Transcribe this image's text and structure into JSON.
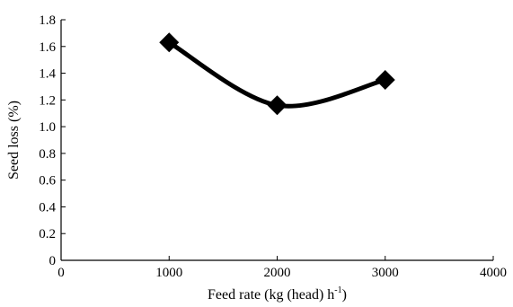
{
  "chart_data": {
    "type": "line",
    "title": "",
    "xlabel": "Feed rate (kg (head) h",
    "xlabel_sup": "-1",
    "xlabel_close": ")",
    "ylabel": "Seed loss (%)",
    "xlim": [
      0,
      4000
    ],
    "ylim": [
      0,
      1.8
    ],
    "x_ticks": [
      0,
      1000,
      2000,
      3000,
      4000
    ],
    "y_ticks": [
      0,
      0.2,
      0.4,
      0.6,
      0.8,
      1.0,
      1.2,
      1.4,
      1.6,
      1.8
    ],
    "x_tick_labels": [
      "0",
      "1000",
      "2000",
      "3000",
      "4000"
    ],
    "y_tick_labels": [
      "0",
      "0.2",
      "0.4",
      "0.6",
      "0.8",
      "1.0",
      "1.2",
      "1.4",
      "1.6",
      "1.8"
    ],
    "smooth": true,
    "marker": "diamond",
    "grid": false,
    "series": [
      {
        "x": [
          1000,
          2000,
          3000
        ],
        "values": [
          1.63,
          1.16,
          1.35
        ]
      }
    ]
  }
}
